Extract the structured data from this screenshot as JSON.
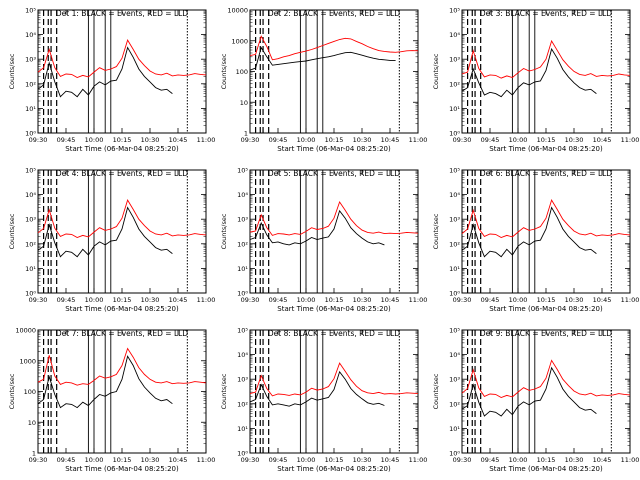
{
  "chart_data": [
    {
      "type": "line",
      "title": "Det 1: BLACK = Events, RED = LLD",
      "ylabel": "Counts/sec",
      "xlabel": "Start Time (06-Mar-04 08:25:20)",
      "xticks": [
        "09:30",
        "09:45",
        "10:00",
        "10:15",
        "10:30",
        "10:45",
        "11:00"
      ],
      "yticks": [
        "10⁰",
        "10¹",
        "10²",
        "10³",
        "10⁴",
        "10⁵"
      ],
      "ylog": [
        0,
        5
      ],
      "x": [
        0,
        3,
        6,
        9,
        12,
        15,
        18,
        21,
        24,
        27,
        30,
        33,
        36,
        39,
        42,
        45,
        48,
        51,
        54,
        57,
        60,
        63,
        66,
        69,
        72,
        75,
        78,
        81,
        84,
        87,
        90
      ],
      "series": [
        {
          "color": "#000000",
          "values": [
            60,
            90,
            700,
            120,
            30,
            50,
            45,
            30,
            60,
            35,
            80,
            120,
            90,
            130,
            140,
            400,
            3000,
            1200,
            400,
            200,
            120,
            70,
            55,
            60,
            40,
            "",
            "",
            "",
            "",
            "",
            ""
          ]
        },
        {
          "color": "#ff0000",
          "values": [
            300,
            450,
            2500,
            450,
            200,
            250,
            240,
            180,
            220,
            190,
            300,
            450,
            350,
            400,
            500,
            1100,
            6000,
            2500,
            1000,
            550,
            330,
            250,
            230,
            270,
            210,
            230,
            220,
            230,
            260,
            240,
            230
          ]
        }
      ]
    },
    {
      "type": "line",
      "title": "Det 2: BLACK = Events, RED = LLD",
      "ylabel": "Counts/sec",
      "xlabel": "Start Time (06-Mar-04 08:25:20)",
      "xticks": [
        "09:30",
        "09:45",
        "10:00",
        "10:15",
        "10:30",
        "10:45",
        "11:00"
      ],
      "yticks": [
        "1",
        "10",
        "100",
        "1000",
        "10000"
      ],
      "ylog": [
        0,
        4
      ],
      "x": [
        0,
        3,
        6,
        9,
        12,
        15,
        18,
        21,
        24,
        27,
        30,
        33,
        36,
        39,
        42,
        45,
        48,
        51,
        54,
        57,
        60,
        63,
        66,
        69,
        72,
        75,
        78,
        81,
        84,
        87,
        90
      ],
      "series": [
        {
          "color": "#000000",
          "values": [
            110,
            130,
            600,
            300,
            160,
            170,
            180,
            190,
            200,
            210,
            220,
            240,
            260,
            280,
            300,
            330,
            370,
            410,
            420,
            380,
            340,
            300,
            270,
            250,
            240,
            230,
            230,
            "",
            "",
            "",
            ""
          ]
        },
        {
          "color": "#ff0000",
          "values": [
            330,
            360,
            1400,
            650,
            240,
            260,
            300,
            330,
            380,
            420,
            460,
            520,
            600,
            700,
            820,
            950,
            1100,
            1200,
            1150,
            950,
            800,
            650,
            550,
            480,
            450,
            430,
            420,
            440,
            470,
            480,
            470
          ]
        }
      ]
    },
    {
      "type": "line",
      "title": "Det 3: BLACK = Events, RED = LLD",
      "ylabel": "Counts/sec",
      "xlabel": "Start Time (06-Mar-04 08:25:20)",
      "xticks": [
        "09:30",
        "09:45",
        "10:00",
        "10:15",
        "10:30",
        "10:45",
        "11:00"
      ],
      "yticks": [
        "10⁰",
        "10¹",
        "10²",
        "10³",
        "10⁴",
        "10⁵"
      ],
      "ylog": [
        0,
        5
      ],
      "x": [
        0,
        3,
        6,
        9,
        12,
        15,
        18,
        21,
        24,
        27,
        30,
        33,
        36,
        39,
        42,
        45,
        48,
        51,
        54,
        57,
        60,
        63,
        66,
        69,
        72,
        75,
        78,
        81,
        84,
        87,
        90
      ],
      "series": [
        {
          "color": "#000000",
          "values": [
            50,
            70,
            400,
            110,
            35,
            45,
            40,
            30,
            55,
            35,
            70,
            110,
            90,
            120,
            130,
            350,
            2600,
            1100,
            380,
            190,
            110,
            70,
            55,
            60,
            40,
            "",
            "",
            "",
            "",
            "",
            ""
          ]
        },
        {
          "color": "#ff0000",
          "values": [
            250,
            300,
            2200,
            420,
            190,
            230,
            220,
            170,
            210,
            180,
            280,
            420,
            330,
            380,
            480,
            1000,
            5500,
            2300,
            950,
            520,
            320,
            240,
            220,
            260,
            200,
            220,
            210,
            220,
            250,
            230,
            220
          ]
        }
      ]
    },
    {
      "type": "line",
      "title": "Det 4: BLACK = Events, RED = LLD",
      "ylabel": "Counts/sec",
      "xlabel": "Start Time (06-Mar-04 08:25:20)",
      "xticks": [
        "09:30",
        "09:45",
        "10:00",
        "10:15",
        "10:30",
        "10:45",
        "11:00"
      ],
      "yticks": [
        "10⁰",
        "10¹",
        "10²",
        "10³",
        "10⁴",
        "10⁵"
      ],
      "ylog": [
        0,
        5
      ],
      "x": [
        0,
        3,
        6,
        9,
        12,
        15,
        18,
        21,
        24,
        27,
        30,
        33,
        36,
        39,
        42,
        45,
        48,
        51,
        54,
        57,
        60,
        63,
        66,
        69,
        72,
        75,
        78,
        81,
        84,
        87,
        90
      ],
      "series": [
        {
          "color": "#000000",
          "values": [
            55,
            80,
            600,
            110,
            30,
            50,
            45,
            30,
            60,
            35,
            80,
            120,
            90,
            130,
            140,
            400,
            3000,
            1200,
            400,
            200,
            120,
            70,
            55,
            60,
            40,
            "",
            "",
            "",
            "",
            "",
            ""
          ]
        },
        {
          "color": "#ff0000",
          "values": [
            280,
            420,
            2400,
            430,
            200,
            250,
            240,
            180,
            220,
            190,
            300,
            450,
            350,
            400,
            500,
            1100,
            6000,
            2500,
            1000,
            550,
            330,
            250,
            230,
            270,
            210,
            230,
            220,
            230,
            260,
            240,
            230
          ]
        }
      ]
    },
    {
      "type": "line",
      "title": "Det 5: BLACK = Events, RED = LLD",
      "ylabel": "Counts/sec",
      "xlabel": "Start Time (06-Mar-04 08:25:20)",
      "xticks": [
        "09:30",
        "09:45",
        "10:00",
        "10:15",
        "10:30",
        "10:45",
        "11:00"
      ],
      "yticks": [
        "10⁰",
        "10¹",
        "10²",
        "10³",
        "10⁴",
        "10⁵"
      ],
      "ylog": [
        0,
        5
      ],
      "x": [
        0,
        3,
        6,
        9,
        12,
        15,
        18,
        21,
        24,
        27,
        30,
        33,
        36,
        39,
        42,
        45,
        48,
        51,
        54,
        57,
        60,
        63,
        66,
        69,
        72,
        75,
        78,
        81,
        84,
        87,
        90
      ],
      "series": [
        {
          "color": "#000000",
          "values": [
            150,
            180,
            700,
            230,
            110,
            120,
            100,
            90,
            110,
            100,
            130,
            180,
            150,
            170,
            190,
            400,
            2200,
            1100,
            450,
            260,
            170,
            120,
            100,
            110,
            90,
            "",
            "",
            "",
            "",
            "",
            ""
          ]
        },
        {
          "color": "#ff0000",
          "values": [
            300,
            330,
            1500,
            450,
            220,
            260,
            250,
            230,
            260,
            240,
            320,
            450,
            380,
            420,
            520,
            1100,
            5000,
            2300,
            1000,
            550,
            360,
            290,
            270,
            300,
            260,
            270,
            260,
            270,
            290,
            280,
            270
          ]
        }
      ]
    },
    {
      "type": "line",
      "title": "Det 6: BLACK = Events, RED = LLD",
      "ylabel": "Counts/sec",
      "xlabel": "Start Time (06-Mar-04 08:25:20)",
      "xticks": [
        "09:30",
        "09:45",
        "10:00",
        "10:15",
        "10:30",
        "10:45",
        "11:00"
      ],
      "yticks": [
        "10⁰",
        "10¹",
        "10²",
        "10³",
        "10⁴",
        "10⁵"
      ],
      "ylog": [
        0,
        5
      ],
      "x": [
        0,
        3,
        6,
        9,
        12,
        15,
        18,
        21,
        24,
        27,
        30,
        33,
        36,
        39,
        42,
        45,
        48,
        51,
        54,
        57,
        60,
        63,
        66,
        69,
        72,
        75,
        78,
        81,
        84,
        87,
        90
      ],
      "series": [
        {
          "color": "#000000",
          "values": [
            55,
            80,
            600,
            110,
            30,
            50,
            45,
            30,
            60,
            35,
            80,
            120,
            90,
            130,
            140,
            400,
            3000,
            1200,
            400,
            200,
            120,
            70,
            55,
            60,
            40,
            "",
            "",
            "",
            "",
            "",
            ""
          ]
        },
        {
          "color": "#ff0000",
          "values": [
            260,
            400,
            2300,
            420,
            200,
            250,
            240,
            180,
            220,
            190,
            300,
            450,
            350,
            400,
            500,
            1100,
            6000,
            2500,
            1000,
            550,
            330,
            250,
            230,
            270,
            210,
            230,
            220,
            230,
            260,
            240,
            230
          ]
        }
      ]
    },
    {
      "type": "line",
      "title": "Det 7: BLACK = Events, RED = LLD",
      "ylabel": "Counts/sec",
      "xlabel": "Start Time (06-Mar-04 08:25:20)",
      "xticks": [
        "09:30",
        "09:45",
        "10:00",
        "10:15",
        "10:30",
        "10:45",
        "11:00"
      ],
      "yticks": [
        "1",
        "10",
        "100",
        "1000",
        "10000"
      ],
      "ylog": [
        0,
        4
      ],
      "x": [
        0,
        3,
        6,
        9,
        12,
        15,
        18,
        21,
        24,
        27,
        30,
        33,
        36,
        39,
        42,
        45,
        48,
        51,
        54,
        57,
        60,
        63,
        66,
        69,
        72,
        75,
        78,
        81,
        84,
        87,
        90
      ],
      "series": [
        {
          "color": "#000000",
          "values": [
            40,
            55,
            300,
            80,
            30,
            40,
            38,
            30,
            45,
            35,
            55,
            80,
            70,
            90,
            100,
            250,
            1400,
            700,
            260,
            140,
            90,
            60,
            50,
            55,
            40,
            "",
            "",
            "",
            "",
            "",
            ""
          ]
        },
        {
          "color": "#ff0000",
          "values": [
            200,
            250,
            1500,
            320,
            170,
            200,
            190,
            160,
            180,
            170,
            230,
            320,
            270,
            300,
            360,
            700,
            2500,
            1300,
            600,
            360,
            250,
            200,
            190,
            210,
            180,
            190,
            185,
            190,
            210,
            200,
            190
          ]
        }
      ]
    },
    {
      "type": "line",
      "title": "Det 8: BLACK = Events, RED = LLD",
      "ylabel": "Counts/sec",
      "xlabel": "Start Time (06-Mar-04 08:25:20)",
      "xticks": [
        "09:30",
        "09:45",
        "10:00",
        "10:15",
        "10:30",
        "10:45",
        "11:00"
      ],
      "yticks": [
        "10⁰",
        "10¹",
        "10²",
        "10³",
        "10⁴",
        "10⁵"
      ],
      "ylog": [
        0,
        5
      ],
      "x": [
        0,
        3,
        6,
        9,
        12,
        15,
        18,
        21,
        24,
        27,
        30,
        33,
        36,
        39,
        42,
        45,
        48,
        51,
        54,
        57,
        60,
        63,
        66,
        69,
        72,
        75,
        78,
        81,
        84,
        87,
        90
      ],
      "series": [
        {
          "color": "#000000",
          "values": [
            120,
            150,
            600,
            200,
            90,
            100,
            90,
            80,
            100,
            90,
            120,
            170,
            140,
            160,
            180,
            380,
            2000,
            1000,
            420,
            240,
            160,
            110,
            95,
            105,
            85,
            "",
            "",
            "",
            "",
            "",
            ""
          ]
        },
        {
          "color": "#ff0000",
          "values": [
            260,
            300,
            1400,
            420,
            210,
            250,
            240,
            220,
            250,
            230,
            300,
            430,
            360,
            400,
            500,
            1050,
            4500,
            2100,
            950,
            520,
            340,
            280,
            260,
            290,
            250,
            260,
            250,
            260,
            280,
            270,
            260
          ]
        }
      ]
    },
    {
      "type": "line",
      "title": "Det 9: BLACK = Events, RED = LLD",
      "ylabel": "Counts/sec",
      "xlabel": "Start Time (06-Mar-04 08:25:20)",
      "xticks": [
        "09:30",
        "09:45",
        "10:00",
        "10:15",
        "10:30",
        "10:45",
        "11:00"
      ],
      "yticks": [
        "10⁰",
        "10¹",
        "10²",
        "10³",
        "10⁴",
        "10⁵"
      ],
      "ylog": [
        0,
        5
      ],
      "x": [
        0,
        3,
        6,
        9,
        12,
        15,
        18,
        21,
        24,
        27,
        30,
        33,
        36,
        39,
        42,
        45,
        48,
        51,
        54,
        57,
        60,
        63,
        66,
        69,
        72,
        75,
        78,
        81,
        84,
        87,
        90
      ],
      "series": [
        {
          "color": "#000000",
          "values": [
            60,
            85,
            600,
            115,
            32,
            50,
            45,
            32,
            60,
            36,
            80,
            120,
            90,
            130,
            140,
            400,
            2900,
            1200,
            400,
            200,
            120,
            70,
            55,
            60,
            40,
            "",
            "",
            "",
            "",
            "",
            ""
          ]
        },
        {
          "color": "#ff0000",
          "values": [
            270,
            420,
            2400,
            440,
            200,
            250,
            240,
            180,
            220,
            190,
            300,
            450,
            350,
            400,
            500,
            1100,
            5800,
            2500,
            1000,
            550,
            330,
            250,
            230,
            270,
            210,
            230,
            220,
            230,
            260,
            240,
            230
          ]
        }
      ]
    }
  ]
}
